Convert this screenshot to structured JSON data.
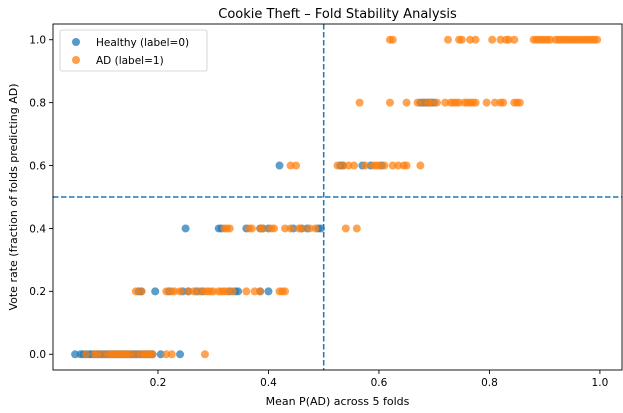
{
  "chart_data": {
    "type": "scatter",
    "title": "Cookie Theft – Fold Stability Analysis",
    "xlabel": "Mean P(AD) across 5 folds",
    "ylabel": "Vote rate (fraction of folds predicting AD)",
    "xlim": [
      0.01,
      1.04
    ],
    "ylim": [
      -0.05,
      1.05
    ],
    "xticks": [
      0.2,
      0.4,
      0.6,
      0.8,
      1.0
    ],
    "xtick_labels": [
      "0.2",
      "0.4",
      "0.6",
      "0.8",
      "1.0"
    ],
    "yticks": [
      0.0,
      0.2,
      0.4,
      0.6,
      0.8,
      1.0
    ],
    "ytick_labels": [
      "0.0",
      "0.2",
      "0.4",
      "0.6",
      "0.8",
      "1.0"
    ],
    "grid": false,
    "legend_position": "top-left",
    "reference_lines": [
      {
        "orientation": "vertical",
        "value": 0.5,
        "style": "dashed",
        "color": "#1f77b4"
      },
      {
        "orientation": "horizontal",
        "value": 0.5,
        "style": "dashed",
        "color": "#1f77b4"
      }
    ],
    "series": [
      {
        "name": "Healthy (label=0)",
        "color": "#1f77b4",
        "points": [
          [
            0.05,
            0.0
          ],
          [
            0.06,
            0.0
          ],
          [
            0.065,
            0.0
          ],
          [
            0.07,
            0.0
          ],
          [
            0.075,
            0.0
          ],
          [
            0.08,
            0.0
          ],
          [
            0.085,
            0.0
          ],
          [
            0.09,
            0.0
          ],
          [
            0.095,
            0.0
          ],
          [
            0.1,
            0.0
          ],
          [
            0.105,
            0.0
          ],
          [
            0.11,
            0.0
          ],
          [
            0.115,
            0.0
          ],
          [
            0.12,
            0.0
          ],
          [
            0.125,
            0.0
          ],
          [
            0.13,
            0.0
          ],
          [
            0.135,
            0.0
          ],
          [
            0.14,
            0.0
          ],
          [
            0.145,
            0.0
          ],
          [
            0.15,
            0.0
          ],
          [
            0.155,
            0.0
          ],
          [
            0.16,
            0.0
          ],
          [
            0.165,
            0.0
          ],
          [
            0.17,
            0.0
          ],
          [
            0.175,
            0.0
          ],
          [
            0.18,
            0.0
          ],
          [
            0.185,
            0.0
          ],
          [
            0.19,
            0.0
          ],
          [
            0.205,
            0.0
          ],
          [
            0.24,
            0.0
          ],
          [
            0.165,
            0.2
          ],
          [
            0.17,
            0.2
          ],
          [
            0.195,
            0.2
          ],
          [
            0.22,
            0.2
          ],
          [
            0.245,
            0.2
          ],
          [
            0.255,
            0.2
          ],
          [
            0.27,
            0.2
          ],
          [
            0.28,
            0.2
          ],
          [
            0.33,
            0.2
          ],
          [
            0.34,
            0.2
          ],
          [
            0.345,
            0.2
          ],
          [
            0.385,
            0.2
          ],
          [
            0.4,
            0.2
          ],
          [
            0.25,
            0.4
          ],
          [
            0.31,
            0.4
          ],
          [
            0.315,
            0.4
          ],
          [
            0.36,
            0.4
          ],
          [
            0.385,
            0.4
          ],
          [
            0.39,
            0.4
          ],
          [
            0.4,
            0.4
          ],
          [
            0.445,
            0.4
          ],
          [
            0.46,
            0.4
          ],
          [
            0.47,
            0.4
          ],
          [
            0.49,
            0.4
          ],
          [
            0.495,
            0.4
          ],
          [
            0.42,
            0.6
          ],
          [
            0.53,
            0.6
          ],
          [
            0.535,
            0.6
          ],
          [
            0.57,
            0.6
          ],
          [
            0.585,
            0.6
          ],
          [
            0.605,
            0.6
          ],
          [
            0.675,
            0.8
          ],
          [
            0.68,
            0.8
          ],
          [
            0.685,
            0.8
          ],
          [
            0.69,
            0.8
          ],
          [
            0.695,
            0.8
          ],
          [
            0.7,
            0.8
          ]
        ]
      },
      {
        "name": "AD (label=1)",
        "color": "#ff7f0e",
        "points": [
          [
            0.07,
            0.0
          ],
          [
            0.085,
            0.0
          ],
          [
            0.09,
            0.0
          ],
          [
            0.1,
            0.0
          ],
          [
            0.11,
            0.0
          ],
          [
            0.115,
            0.0
          ],
          [
            0.12,
            0.0
          ],
          [
            0.125,
            0.0
          ],
          [
            0.13,
            0.0
          ],
          [
            0.135,
            0.0
          ],
          [
            0.14,
            0.0
          ],
          [
            0.145,
            0.0
          ],
          [
            0.15,
            0.0
          ],
          [
            0.16,
            0.0
          ],
          [
            0.17,
            0.0
          ],
          [
            0.175,
            0.0
          ],
          [
            0.18,
            0.0
          ],
          [
            0.185,
            0.0
          ],
          [
            0.19,
            0.0
          ],
          [
            0.215,
            0.0
          ],
          [
            0.225,
            0.0
          ],
          [
            0.285,
            0.0
          ],
          [
            0.16,
            0.2
          ],
          [
            0.17,
            0.2
          ],
          [
            0.215,
            0.2
          ],
          [
            0.225,
            0.2
          ],
          [
            0.23,
            0.2
          ],
          [
            0.24,
            0.2
          ],
          [
            0.255,
            0.2
          ],
          [
            0.265,
            0.2
          ],
          [
            0.275,
            0.2
          ],
          [
            0.285,
            0.2
          ],
          [
            0.29,
            0.2
          ],
          [
            0.295,
            0.2
          ],
          [
            0.3,
            0.2
          ],
          [
            0.31,
            0.2
          ],
          [
            0.315,
            0.2
          ],
          [
            0.32,
            0.2
          ],
          [
            0.325,
            0.2
          ],
          [
            0.335,
            0.2
          ],
          [
            0.36,
            0.2
          ],
          [
            0.375,
            0.2
          ],
          [
            0.385,
            0.2
          ],
          [
            0.42,
            0.2
          ],
          [
            0.425,
            0.2
          ],
          [
            0.43,
            0.2
          ],
          [
            0.32,
            0.4
          ],
          [
            0.325,
            0.4
          ],
          [
            0.33,
            0.4
          ],
          [
            0.365,
            0.4
          ],
          [
            0.37,
            0.4
          ],
          [
            0.385,
            0.4
          ],
          [
            0.39,
            0.4
          ],
          [
            0.405,
            0.4
          ],
          [
            0.41,
            0.4
          ],
          [
            0.43,
            0.4
          ],
          [
            0.44,
            0.4
          ],
          [
            0.455,
            0.4
          ],
          [
            0.46,
            0.4
          ],
          [
            0.475,
            0.4
          ],
          [
            0.485,
            0.4
          ],
          [
            0.54,
            0.4
          ],
          [
            0.56,
            0.4
          ],
          [
            0.44,
            0.6
          ],
          [
            0.45,
            0.6
          ],
          [
            0.525,
            0.6
          ],
          [
            0.535,
            0.6
          ],
          [
            0.545,
            0.6
          ],
          [
            0.555,
            0.6
          ],
          [
            0.575,
            0.6
          ],
          [
            0.59,
            0.6
          ],
          [
            0.595,
            0.6
          ],
          [
            0.6,
            0.6
          ],
          [
            0.61,
            0.6
          ],
          [
            0.625,
            0.6
          ],
          [
            0.635,
            0.6
          ],
          [
            0.645,
            0.6
          ],
          [
            0.65,
            0.6
          ],
          [
            0.675,
            0.6
          ],
          [
            0.565,
            0.8
          ],
          [
            0.62,
            0.8
          ],
          [
            0.65,
            0.8
          ],
          [
            0.67,
            0.8
          ],
          [
            0.68,
            0.8
          ],
          [
            0.69,
            0.8
          ],
          [
            0.695,
            0.8
          ],
          [
            0.705,
            0.8
          ],
          [
            0.72,
            0.8
          ],
          [
            0.73,
            0.8
          ],
          [
            0.735,
            0.8
          ],
          [
            0.74,
            0.8
          ],
          [
            0.745,
            0.8
          ],
          [
            0.755,
            0.8
          ],
          [
            0.76,
            0.8
          ],
          [
            0.765,
            0.8
          ],
          [
            0.77,
            0.8
          ],
          [
            0.775,
            0.8
          ],
          [
            0.795,
            0.8
          ],
          [
            0.81,
            0.8
          ],
          [
            0.82,
            0.8
          ],
          [
            0.825,
            0.8
          ],
          [
            0.845,
            0.8
          ],
          [
            0.85,
            0.8
          ],
          [
            0.855,
            0.8
          ],
          [
            0.62,
            1.0
          ],
          [
            0.625,
            1.0
          ],
          [
            0.725,
            1.0
          ],
          [
            0.745,
            1.0
          ],
          [
            0.75,
            1.0
          ],
          [
            0.765,
            1.0
          ],
          [
            0.775,
            1.0
          ],
          [
            0.805,
            1.0
          ],
          [
            0.82,
            1.0
          ],
          [
            0.83,
            1.0
          ],
          [
            0.835,
            1.0
          ],
          [
            0.845,
            1.0
          ],
          [
            0.88,
            1.0
          ],
          [
            0.885,
            1.0
          ],
          [
            0.89,
            1.0
          ],
          [
            0.895,
            1.0
          ],
          [
            0.9,
            1.0
          ],
          [
            0.905,
            1.0
          ],
          [
            0.91,
            1.0
          ],
          [
            0.92,
            1.0
          ],
          [
            0.925,
            1.0
          ],
          [
            0.93,
            1.0
          ],
          [
            0.935,
            1.0
          ],
          [
            0.94,
            1.0
          ],
          [
            0.945,
            1.0
          ],
          [
            0.95,
            1.0
          ],
          [
            0.955,
            1.0
          ],
          [
            0.96,
            1.0
          ],
          [
            0.965,
            1.0
          ],
          [
            0.97,
            1.0
          ],
          [
            0.975,
            1.0
          ],
          [
            0.98,
            1.0
          ],
          [
            0.985,
            1.0
          ],
          [
            0.99,
            1.0
          ],
          [
            0.995,
            1.0
          ]
        ]
      }
    ]
  }
}
